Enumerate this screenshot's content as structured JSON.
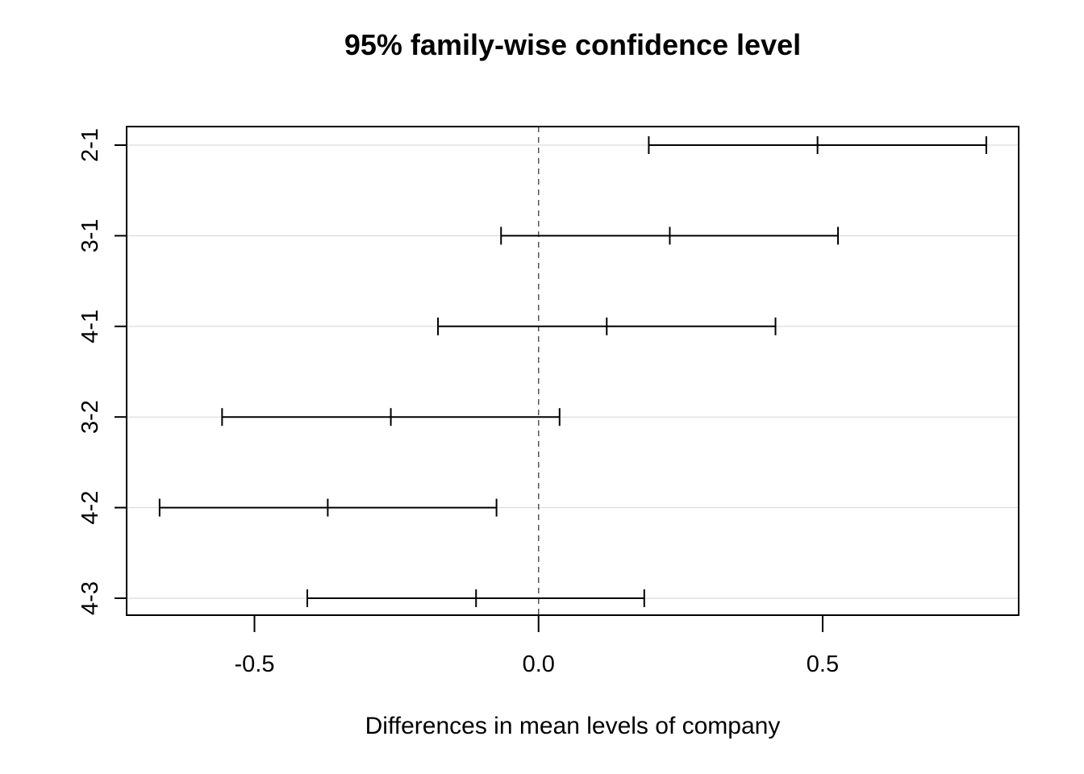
{
  "chart_data": {
    "type": "interval",
    "title": "95% family-wise confidence level",
    "xlabel": "Differences in mean levels of company",
    "ylabel": "",
    "xlim": [
      -0.725,
      0.845
    ],
    "x_ticks": [
      -0.5,
      0.0,
      0.5
    ],
    "x_tick_labels": [
      "-0.5",
      "0.0",
      "0.5"
    ],
    "reference_line": 0.0,
    "grid": "horizontal",
    "comparisons": [
      {
        "label": "2-1",
        "lwr": 0.194,
        "diff": 0.491,
        "upr": 0.788
      },
      {
        "label": "3-1",
        "lwr": -0.066,
        "diff": 0.231,
        "upr": 0.527
      },
      {
        "label": "4-1",
        "lwr": -0.177,
        "diff": 0.12,
        "upr": 0.417
      },
      {
        "label": "3-2",
        "lwr": -0.557,
        "diff": -0.26,
        "upr": 0.037
      },
      {
        "label": "4-2",
        "lwr": -0.667,
        "diff": -0.371,
        "upr": -0.074
      },
      {
        "label": "4-3",
        "lwr": -0.407,
        "diff": -0.11,
        "upr": 0.186
      }
    ],
    "colors": {
      "interval": "#000000",
      "grid": "#d3d3d3",
      "reference": "#555555"
    }
  }
}
